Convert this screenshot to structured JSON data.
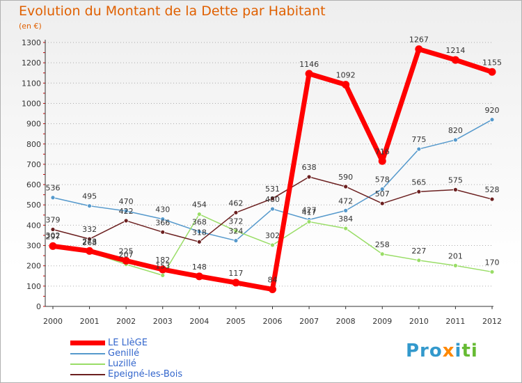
{
  "chart_data": {
    "type": "line",
    "title": "Evolution du Montant de la Dette par Habitant",
    "subtitle": "(en €)",
    "xlabel": "",
    "ylabel": "",
    "ylim": [
      0,
      1300
    ],
    "yticks": [
      0,
      100,
      200,
      300,
      400,
      500,
      600,
      700,
      800,
      900,
      1000,
      1100,
      1200,
      1300
    ],
    "categories": [
      "2000",
      "2001",
      "2002",
      "2003",
      "2004",
      "2005",
      "2006",
      "2007",
      "2008",
      "2009",
      "2010",
      "2011",
      "2012"
    ],
    "grid": "horizontal dotted",
    "legend_position": "bottom-left",
    "series": [
      {
        "name": "LE LIèGE",
        "color": "#ff0000",
        "values": [
          297,
          273,
          225,
          182,
          148,
          117,
          84,
          1146,
          1092,
          716,
          1267,
          1214,
          1155
        ],
        "labels": [
          "297",
          "273",
          "225",
          "182",
          "148",
          "117",
          "84",
          "1146",
          "1092",
          "716",
          "1267",
          "1214",
          "1155"
        ]
      },
      {
        "name": "Genillé",
        "color": "#5599cc",
        "values": [
          536,
          495,
          470,
          430,
          368,
          324,
          480,
          427,
          472,
          578,
          775,
          820,
          920
        ],
        "labels": [
          "536",
          "495",
          "470",
          "430",
          "368",
          "324",
          "480",
          "427",
          "472",
          "578",
          "775",
          "820",
          "920"
        ]
      },
      {
        "name": "Luzillé",
        "color": "#99dd66",
        "values": [
          302,
          268,
          207,
          153,
          454,
          372,
          302,
          417,
          384,
          258,
          227,
          201,
          170
        ],
        "labels": [
          "302",
          "268",
          "207",
          "153",
          "454",
          "372",
          "302",
          "417",
          "384",
          "258",
          "227",
          "201",
          "170"
        ]
      },
      {
        "name": "Epeigné-les-Bois",
        "color": "#6b1f1f",
        "values": [
          379,
          332,
          422,
          366,
          318,
          462,
          531,
          638,
          590,
          507,
          565,
          575,
          528
        ],
        "labels": [
          "379",
          "332",
          "422",
          "366",
          "318",
          "462",
          "531",
          "638",
          "590",
          "507",
          "565",
          "575",
          "528"
        ]
      }
    ]
  },
  "branding": {
    "logo_text": "Proxiti"
  }
}
